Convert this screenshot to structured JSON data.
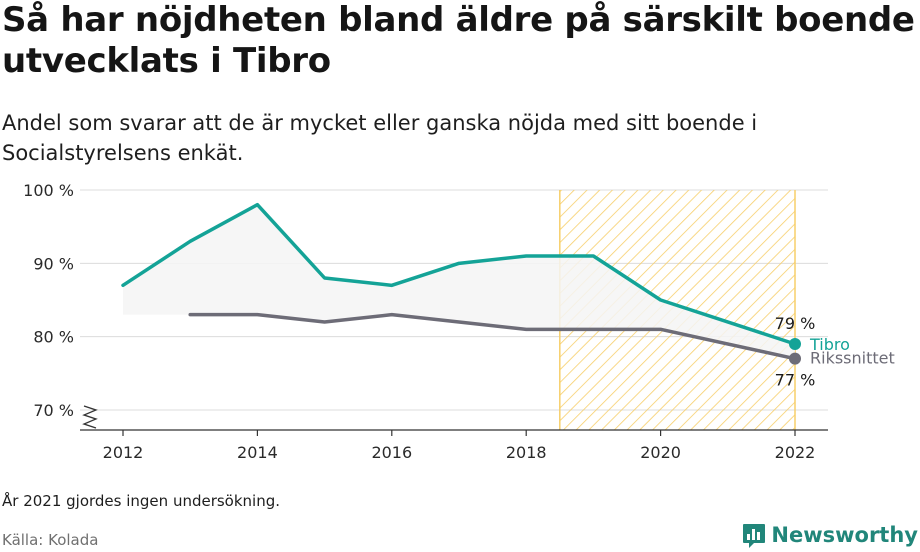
{
  "header": {
    "title": "Så har nöjdheten bland äldre på särskilt boende utvecklats i Tibro",
    "subtitle": "Andel som svarar att de är mycket eller ganska nöjda med sitt boende i Socialstyrelsens enkät."
  },
  "footer": {
    "note": "År 2021 gjordes ingen undersökning.",
    "source": "Källa: Kolada",
    "brand": "Newsworthy",
    "brand_icon": "newsworthy-logo-icon"
  },
  "colors": {
    "tibro": "#14a397",
    "riket": "#6d6c77",
    "hatch": "#f7cf6a",
    "band": "#f5f5f5",
    "grid": "#dcdcdc"
  },
  "chart_data": {
    "type": "line",
    "title": "Så har nöjdheten bland äldre på särskilt boende utvecklats i Tibro",
    "xlabel": "",
    "ylabel": "",
    "x_ticks": [
      "2012",
      "2014",
      "2016",
      "2018",
      "2020",
      "2022"
    ],
    "y_ticks": [
      "70 %",
      "80 %",
      "90 %",
      "100 %"
    ],
    "xlim": [
      2012,
      2022
    ],
    "ylim": [
      70,
      100
    ],
    "y_axis_break": true,
    "grid": true,
    "highlight_region": {
      "from": 2018.5,
      "to": 2022
    },
    "series": [
      {
        "name": "Tibro",
        "color": "#14a397",
        "x": [
          2012,
          2013,
          2014,
          2015,
          2016,
          2017,
          2018,
          2019,
          2020,
          2022
        ],
        "values": [
          87,
          93,
          98,
          88,
          87,
          90,
          91,
          91,
          85,
          79
        ],
        "end_label": "79 %"
      },
      {
        "name": "Rikssnittet",
        "color": "#6d6c77",
        "x": [
          2013,
          2014,
          2015,
          2016,
          2017,
          2018,
          2019,
          2020,
          2022
        ],
        "values": [
          83,
          83,
          82,
          83,
          82,
          81,
          81,
          81,
          77
        ],
        "end_label": "77 %"
      }
    ]
  }
}
